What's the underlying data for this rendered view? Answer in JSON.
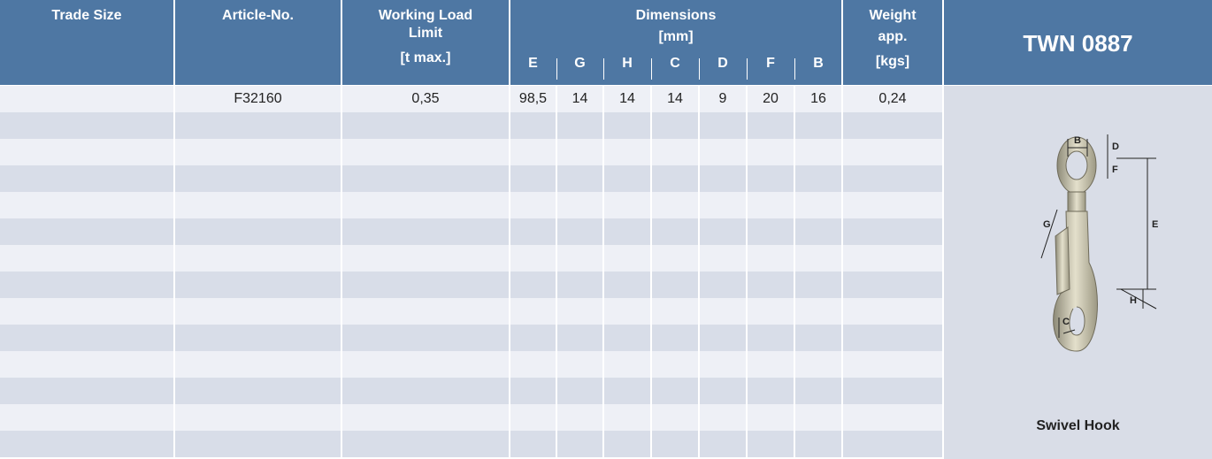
{
  "header": {
    "trade_size": "Trade Size",
    "article_no": "Article-No.",
    "working_load_limit": [
      "Working Load",
      "Limit",
      "[t max.]"
    ],
    "dimensions": {
      "title": "Dimensions",
      "unit": "[mm]",
      "columns": [
        "E",
        "G",
        "H",
        "C",
        "D",
        "F",
        "B"
      ]
    },
    "weight": [
      "Weight",
      "app.",
      "[kgs]"
    ],
    "product_code": "TWN 0887"
  },
  "rows": [
    {
      "article_no": "F32160",
      "working_load_limit": "0,35",
      "dimensions": [
        "98,5",
        "14",
        "14",
        "14",
        "9",
        "20",
        "16"
      ],
      "weight": "0,24"
    }
  ],
  "product": {
    "name": "Swivel Hook",
    "diagram_labels": {
      "B": "B",
      "D": "D",
      "F": "F",
      "E": "E",
      "G": "G",
      "H": "H",
      "C": "C"
    }
  }
}
